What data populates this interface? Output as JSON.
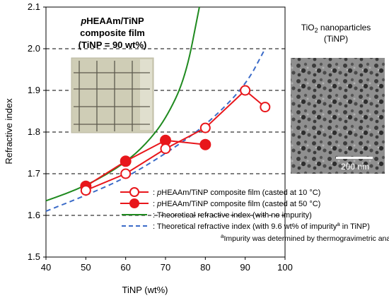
{
  "chart_data": {
    "type": "line",
    "xlabel": "TiNP (wt%)",
    "ylabel": "Refractive index",
    "xlim": [
      40,
      100
    ],
    "ylim": [
      1.5,
      2.1
    ],
    "x_ticks": [
      "40",
      "50",
      "60",
      "70",
      "80",
      "90",
      "100"
    ],
    "y_ticks": [
      "1.5",
      "1.6",
      "1.7",
      "1.8",
      "1.9",
      "2.0",
      "2.1"
    ],
    "grid": "horizontal dashed",
    "series": [
      {
        "name": ": pHEAAm/TiNP composite film (casted at 10 °C)",
        "name_italic_prefix": "p",
        "name_rest": "HEAAm/TiNP composite film (casted at 10 °C)",
        "marker": "open-circle",
        "color": "#e8161b",
        "x": [
          50,
          60,
          70,
          80,
          90,
          95
        ],
        "y": [
          1.66,
          1.7,
          1.76,
          1.81,
          1.9,
          1.86
        ]
      },
      {
        "name": ": pHEAAm/TiNP composite film (casted at 50 °C)",
        "name_italic_prefix": "p",
        "name_rest": "HEAAm/TiNP composite film (casted at 50 °C)",
        "marker": "filled-circle",
        "color": "#e8161b",
        "x": [
          50,
          60,
          70,
          80
        ],
        "y": [
          1.67,
          1.73,
          1.78,
          1.77
        ]
      },
      {
        "name": ": Theoretical refractive index (with no impurity)",
        "style": "solid",
        "color": "#1f8a1f",
        "x": [
          40,
          45,
          50,
          55,
          60,
          65,
          70,
          75,
          78.5
        ],
        "y": [
          1.635,
          1.652,
          1.672,
          1.697,
          1.728,
          1.77,
          1.83,
          1.93,
          2.1
        ]
      },
      {
        "name": ": Theoretical refractive index  (with 9.6 wt% of impurity in TiNP)",
        "name_main": ": Theoretical refractive index  (with 9.6 wt% of impurity",
        "name_sup": "a",
        "name_tail": " in TiNP)",
        "style": "dashed",
        "color": "#3b6bc8",
        "x": [
          40,
          50,
          60,
          70,
          80,
          90,
          95
        ],
        "y": [
          1.61,
          1.648,
          1.69,
          1.748,
          1.815,
          1.91,
          2.0
        ]
      }
    ],
    "annotations": {
      "footnote_sup": "a",
      "footnote": "Impurity was determined by thermogravimetric analysis"
    }
  },
  "inset_film": {
    "title_italic": "p",
    "title_line1_rest": "HEAAm/TiNP",
    "title_line2": "composite film",
    "title_line3": "(TiNP = 90 wt%)"
  },
  "inset_tem": {
    "title_line1_main": "TiO",
    "title_line1_sub": "2",
    "title_line1_rest": " nanoparticles",
    "title_line2": "(TiNP)",
    "scale_label": "200 nm"
  },
  "colors": {
    "red": "#e8161b",
    "green": "#1f8a1f",
    "blue": "#3b6bc8"
  }
}
